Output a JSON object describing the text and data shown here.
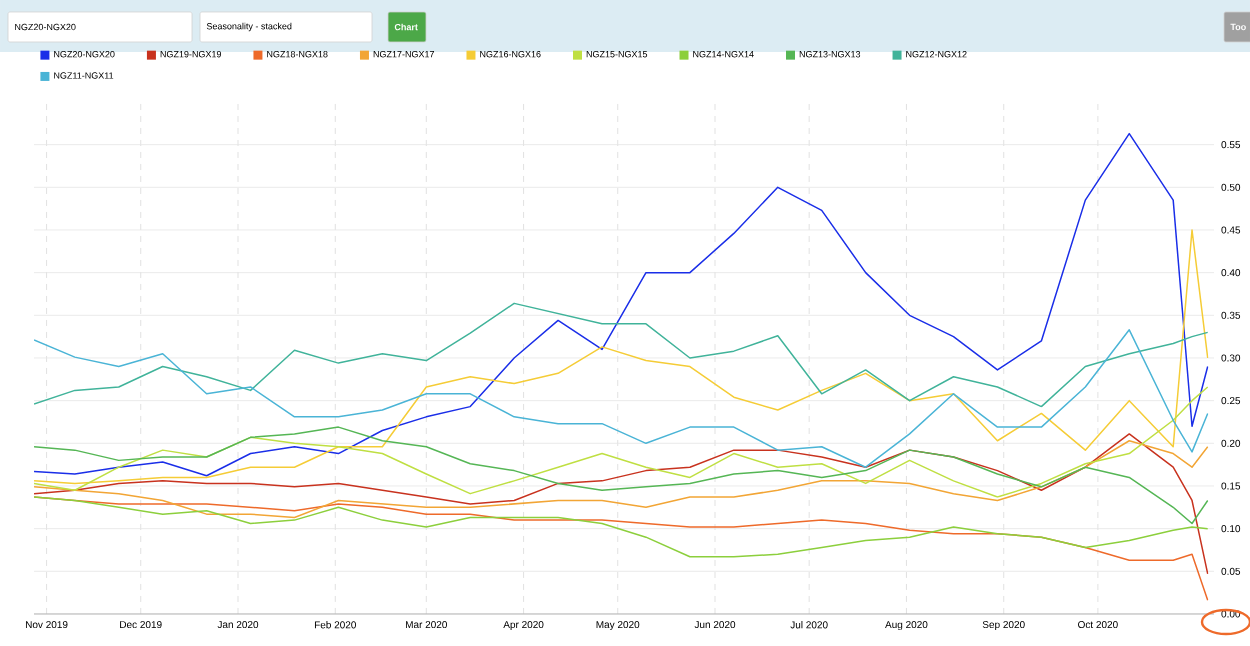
{
  "chart_data": {
    "type": "line",
    "annotations": [
      "NGZ20-NGX20",
      "Seasonality - stacked",
      "Chart",
      "Too"
    ],
    "x": [
      "2019-10-28",
      "2019-11-10",
      "2019-11-24",
      "2019-12-08",
      "2019-12-22",
      "2020-01-05",
      "2020-01-19",
      "2020-02-02",
      "2020-02-16",
      "2020-03-01",
      "2020-03-15",
      "2020-03-29",
      "2020-04-12",
      "2020-04-26",
      "2020-05-10",
      "2020-05-24",
      "2020-06-07",
      "2020-06-21",
      "2020-07-05",
      "2020-07-19",
      "2020-08-02",
      "2020-08-16",
      "2020-08-30",
      "2020-09-13",
      "2020-09-27",
      "2020-10-11",
      "2020-10-25",
      "2020-10-31",
      "2020-11-05"
    ],
    "series": [
      {
        "name": "NGZ20-NGX20",
        "color": "#1a2ee8",
        "values": [
          0.167,
          0.164,
          0.172,
          0.178,
          0.162,
          0.188,
          0.196,
          0.188,
          0.215,
          0.231,
          0.243,
          0.3,
          0.344,
          0.31,
          0.4,
          0.4,
          0.446,
          0.5,
          0.473,
          0.4,
          0.35,
          0.325,
          0.286,
          0.32,
          0.485,
          0.563,
          0.485,
          0.22,
          0.29
        ]
      },
      {
        "name": "NGZ19-NGX19",
        "color": "#c8321e",
        "values": [
          0.141,
          0.145,
          0.153,
          0.156,
          0.153,
          0.153,
          0.149,
          0.153,
          0.145,
          0.137,
          0.129,
          0.133,
          0.153,
          0.156,
          0.168,
          0.172,
          0.192,
          0.192,
          0.184,
          0.172,
          0.192,
          0.184,
          0.168,
          0.145,
          0.172,
          0.211,
          0.172,
          0.133,
          0.047
        ]
      },
      {
        "name": "NGZ18-NGX18",
        "color": "#ee6a2a",
        "values": [
          0.137,
          0.133,
          0.129,
          0.129,
          0.129,
          0.125,
          0.121,
          0.129,
          0.125,
          0.117,
          0.117,
          0.11,
          0.11,
          0.11,
          0.106,
          0.102,
          0.102,
          0.106,
          0.11,
          0.106,
          0.098,
          0.094,
          0.094,
          0.09,
          0.078,
          0.063,
          0.063,
          0.07,
          0.016
        ]
      },
      {
        "name": "NGZ17-NGX17",
        "color": "#f2a535",
        "values": [
          0.149,
          0.145,
          0.141,
          0.133,
          0.117,
          0.117,
          0.113,
          0.133,
          0.129,
          0.125,
          0.125,
          0.129,
          0.133,
          0.133,
          0.125,
          0.137,
          0.137,
          0.145,
          0.156,
          0.156,
          0.153,
          0.141,
          0.133,
          0.149,
          0.172,
          0.203,
          0.188,
          0.172,
          0.196
        ]
      },
      {
        "name": "NGZ16-NGX16",
        "color": "#f5cc36",
        "values": [
          0.156,
          0.153,
          0.156,
          0.16,
          0.16,
          0.172,
          0.172,
          0.196,
          0.196,
          0.266,
          0.278,
          0.27,
          0.282,
          0.313,
          0.297,
          0.29,
          0.254,
          0.239,
          0.262,
          0.282,
          0.25,
          0.258,
          0.203,
          0.235,
          0.192,
          0.25,
          0.196,
          0.45,
          0.3
        ]
      },
      {
        "name": "NGZ15-NGX15",
        "color": "#bfdf42",
        "values": [
          0.153,
          0.145,
          0.172,
          0.192,
          0.184,
          0.207,
          0.2,
          0.196,
          0.188,
          0.164,
          0.141,
          0.156,
          0.172,
          0.188,
          0.172,
          0.16,
          0.188,
          0.172,
          0.176,
          0.153,
          0.18,
          0.156,
          0.137,
          0.153,
          0.176,
          0.188,
          0.227,
          0.25,
          0.266
        ]
      },
      {
        "name": "NGZ14-NGX14",
        "color": "#8ccf3c",
        "values": [
          0.137,
          0.133,
          0.125,
          0.117,
          0.121,
          0.106,
          0.11,
          0.125,
          0.11,
          0.102,
          0.113,
          0.113,
          0.113,
          0.106,
          0.09,
          0.067,
          0.067,
          0.07,
          0.078,
          0.086,
          0.09,
          0.102,
          0.094,
          0.09,
          0.078,
          0.086,
          0.098,
          0.102,
          0.1
        ]
      },
      {
        "name": "NGZ13-NGX13",
        "color": "#55b655",
        "values": [
          0.196,
          0.192,
          0.18,
          0.184,
          0.184,
          0.207,
          0.211,
          0.219,
          0.203,
          0.196,
          0.176,
          0.168,
          0.153,
          0.145,
          0.149,
          0.153,
          0.164,
          0.168,
          0.16,
          0.168,
          0.192,
          0.184,
          0.164,
          0.149,
          0.172,
          0.16,
          0.125,
          0.106,
          0.133
        ]
      },
      {
        "name": "NGZ12-NGX12",
        "color": "#40b39a",
        "values": [
          0.246,
          0.262,
          0.266,
          0.29,
          0.278,
          0.262,
          0.309,
          0.294,
          0.305,
          0.297,
          0.329,
          0.364,
          0.352,
          0.34,
          0.34,
          0.3,
          0.308,
          0.326,
          0.258,
          0.286,
          0.25,
          0.278,
          0.266,
          0.243,
          0.29,
          0.305,
          0.317,
          0.325,
          0.33
        ]
      },
      {
        "name": "NGZ11-NGX11",
        "color": "#4ab4d6",
        "values": [
          0.321,
          0.301,
          0.29,
          0.305,
          0.258,
          0.266,
          0.231,
          0.231,
          0.239,
          0.258,
          0.258,
          0.231,
          0.223,
          0.223,
          0.2,
          0.219,
          0.219,
          0.192,
          0.196,
          0.172,
          0.211,
          0.258,
          0.219,
          0.219,
          0.266,
          0.333,
          0.227,
          0.19,
          0.235
        ]
      }
    ],
    "xlim": [
      "2019-10-28",
      "2020-11-07"
    ],
    "xticks": [
      {
        "value": "2019-11-01",
        "label": "Nov 2019"
      },
      {
        "value": "2019-12-01",
        "label": "Dec 2019"
      },
      {
        "value": "2020-01-01",
        "label": "Jan 2020"
      },
      {
        "value": "2020-02-01",
        "label": "Feb 2020"
      },
      {
        "value": "2020-03-01",
        "label": "Mar 2020"
      },
      {
        "value": "2020-04-01",
        "label": "Apr 2020"
      },
      {
        "value": "2020-05-01",
        "label": "May 2020"
      },
      {
        "value": "2020-06-01",
        "label": "Jun 2020"
      },
      {
        "value": "2020-07-01",
        "label": "Jul 2020"
      },
      {
        "value": "2020-08-01",
        "label": "Aug 2020"
      },
      {
        "value": "2020-09-01",
        "label": "Sep 2020"
      },
      {
        "value": "2020-10-01",
        "label": "Oct 2020"
      }
    ],
    "ylim": [
      0,
      0.6
    ],
    "yticks": [
      {
        "value": 0,
        "label": "0.00"
      },
      0.05,
      {
        "value": 0.1,
        "label": "0.10"
      },
      0.15,
      {
        "value": 0.2,
        "label": "0.20"
      },
      0.25,
      {
        "value": 0.3,
        "label": "0.30"
      },
      0.35,
      {
        "value": 0.4,
        "label": "0.40"
      },
      0.45,
      {
        "value": 0.5,
        "label": "0.50"
      },
      0.55
    ],
    "grid": true,
    "legend": "top left",
    "marker": "none",
    "line_style": "solid"
  }
}
